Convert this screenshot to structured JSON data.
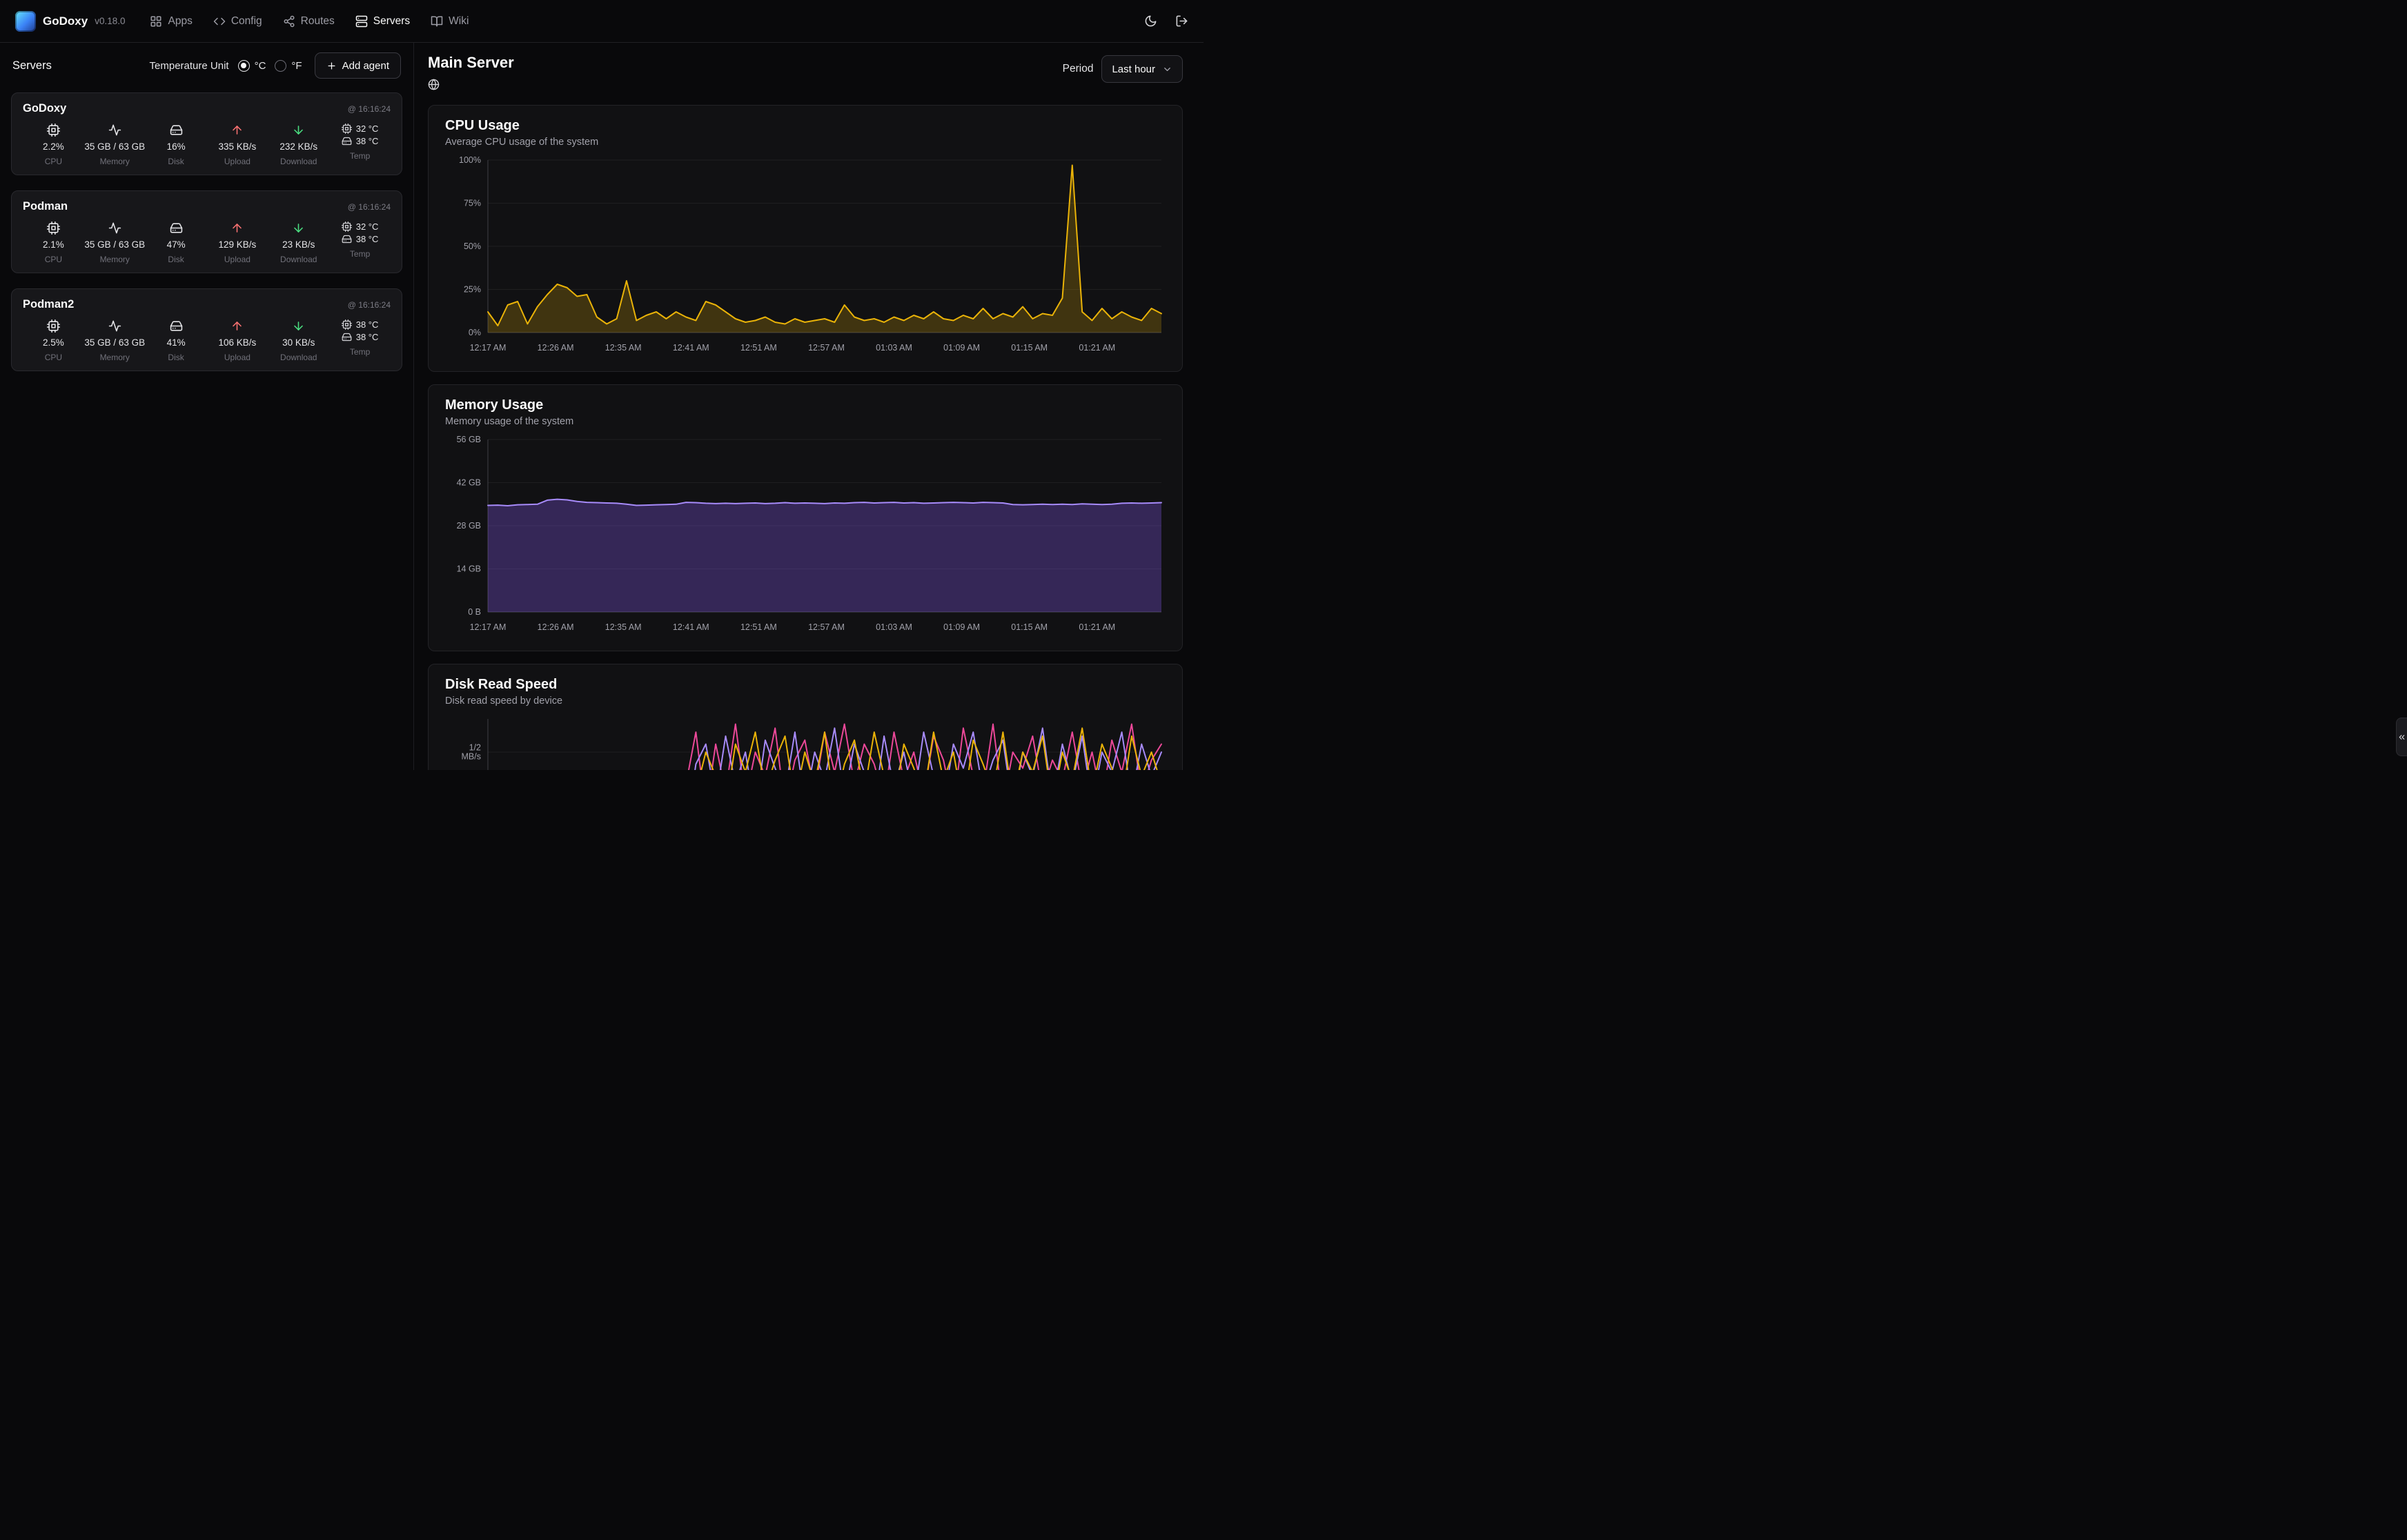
{
  "navbar": {
    "brand": "GoDoxy",
    "version": "v0.18.0",
    "items": [
      {
        "label": "Apps"
      },
      {
        "label": "Config"
      },
      {
        "label": "Routes"
      },
      {
        "label": "Servers"
      },
      {
        "label": "Wiki"
      }
    ]
  },
  "sidebar": {
    "title": "Servers",
    "temperature_unit_label": "Temperature Unit",
    "unit_celsius": "°C",
    "unit_fahrenheit": "°F",
    "add_agent_label": "Add agent",
    "labels": {
      "cpu": "CPU",
      "memory": "Memory",
      "disk": "Disk",
      "upload": "Upload",
      "download": "Download",
      "temp": "Temp"
    },
    "servers": [
      {
        "name": "GoDoxy",
        "timestamp": "@ 16:16:24",
        "cpu": "2.2%",
        "memory": "35 GB / 63 GB",
        "disk": "16%",
        "upload": "335 KB/s",
        "download": "232 KB/s",
        "temp_cpu": "32 °C",
        "temp_disk": "38 °C"
      },
      {
        "name": "Podman",
        "timestamp": "@ 16:16:24",
        "cpu": "2.1%",
        "memory": "35 GB / 63 GB",
        "disk": "47%",
        "upload": "129 KB/s",
        "download": "23 KB/s",
        "temp_cpu": "32 °C",
        "temp_disk": "38 °C"
      },
      {
        "name": "Podman2",
        "timestamp": "@ 16:16:24",
        "cpu": "2.5%",
        "memory": "35 GB / 63 GB",
        "disk": "41%",
        "upload": "106 KB/s",
        "download": "30 KB/s",
        "temp_cpu": "38 °C",
        "temp_disk": "38 °C"
      }
    ]
  },
  "main": {
    "title": "Main Server",
    "period_label": "Period",
    "period_value": "Last hour"
  },
  "chart_data": [
    {
      "type": "area",
      "title": "CPU Usage",
      "subtitle": "Average CPU usage of the system",
      "ylabel": "",
      "xlabel": "",
      "ylim": [
        0,
        100
      ],
      "y_ticks": [
        {
          "v": 0,
          "label": "0%"
        },
        {
          "v": 25,
          "label": "25%"
        },
        {
          "v": 50,
          "label": "50%"
        },
        {
          "v": 75,
          "label": "75%"
        },
        {
          "v": 100,
          "label": "100%"
        }
      ],
      "x_ticks": [
        "12:17 AM",
        "12:26 AM",
        "12:35 AM",
        "12:41 AM",
        "12:51 AM",
        "12:57 AM",
        "01:03 AM",
        "01:09 AM",
        "01:15 AM",
        "01:21 AM"
      ],
      "series": [
        {
          "name": "CPU %",
          "color": "#eab308",
          "fill": "rgba(234,179,8,0.22)",
          "values": [
            12,
            4,
            16,
            18,
            5,
            15,
            22,
            28,
            26,
            21,
            22,
            9,
            5,
            8,
            30,
            7,
            10,
            12,
            8,
            12,
            9,
            7,
            18,
            16,
            12,
            8,
            6,
            7,
            9,
            6,
            5,
            8,
            6,
            7,
            8,
            6,
            16,
            9,
            7,
            8,
            6,
            9,
            7,
            10,
            8,
            12,
            8,
            7,
            10,
            8,
            14,
            8,
            11,
            9,
            15,
            8,
            11,
            10,
            20,
            97,
            12,
            7,
            14,
            8,
            12,
            9,
            7,
            14,
            11
          ]
        }
      ]
    },
    {
      "type": "area",
      "title": "Memory Usage",
      "subtitle": "Memory usage of the system",
      "ylabel": "",
      "xlabel": "",
      "ylim": [
        0,
        56
      ],
      "y_ticks": [
        {
          "v": 0,
          "label": "0 B"
        },
        {
          "v": 14,
          "label": "14 GB"
        },
        {
          "v": 28,
          "label": "28 GB"
        },
        {
          "v": 42,
          "label": "42 GB"
        },
        {
          "v": 56,
          "label": "56 GB"
        }
      ],
      "x_ticks": [
        "12:17 AM",
        "12:26 AM",
        "12:35 AM",
        "12:41 AM",
        "12:51 AM",
        "12:57 AM",
        "01:03 AM",
        "01:09 AM",
        "01:15 AM",
        "01:21 AM"
      ],
      "series": [
        {
          "name": "Memory GB",
          "color": "#a78bfa",
          "fill": "rgba(139,92,246,0.30)",
          "values": [
            34.6,
            34.7,
            34.5,
            34.8,
            34.9,
            35.0,
            36.3,
            36.6,
            36.4,
            35.9,
            35.6,
            35.5,
            35.4,
            35.3,
            35.0,
            34.6,
            34.7,
            34.8,
            34.9,
            35.0,
            35.6,
            35.5,
            35.3,
            35.2,
            35.3,
            35.2,
            35.3,
            35.4,
            35.2,
            35.3,
            35.5,
            35.3,
            35.4,
            35.3,
            35.2,
            35.4,
            35.3,
            35.5,
            35.6,
            35.4,
            35.5,
            35.6,
            35.4,
            35.5,
            35.3,
            35.4,
            35.5,
            35.6,
            35.5,
            35.4,
            35.6,
            35.5,
            35.4,
            34.9,
            34.8,
            34.9,
            35.0,
            34.9,
            35.0,
            34.9,
            35.1,
            35.0,
            34.9,
            35.0,
            35.3,
            35.4,
            35.3,
            35.4,
            35.5
          ]
        }
      ]
    },
    {
      "type": "line",
      "title": "Disk Read Speed",
      "subtitle": "Disk read speed by device",
      "ylabel": "",
      "xlabel": "",
      "ylim": [
        0,
        0.583
      ],
      "y_ticks": [
        {
          "v": 0.5,
          "label": [
            "1/2",
            "MB/s"
          ]
        }
      ],
      "x_ticks": [],
      "series": [
        {
          "name": "",
          "color": "#ec4899",
          "values": [
            0,
            0,
            0,
            0,
            0,
            0,
            0,
            0,
            0,
            0,
            0,
            0,
            0,
            0,
            0,
            0,
            0,
            0,
            0,
            0.1,
            0.42,
            0.55,
            0.35,
            0.52,
            0.4,
            0.57,
            0.38,
            0.5,
            0.44,
            0.56,
            0.36,
            0.48,
            0.53,
            0.4,
            0.55,
            0.45,
            0.57,
            0.42,
            0.52,
            0.47,
            0.38,
            0.55,
            0.43,
            0.5,
            0.39,
            0.54,
            0.48,
            0.36,
            0.56,
            0.44,
            0.4,
            0.57,
            0.37,
            0.5,
            0.46,
            0.54,
            0.4,
            0.48,
            0.43,
            0.55,
            0.41,
            0.5,
            0.38,
            0.53,
            0.45,
            0.57,
            0.4,
            0.48,
            0.52
          ]
        },
        {
          "name": "",
          "color": "#a78bfa",
          "values": [
            0,
            0,
            0,
            0,
            0,
            0,
            0,
            0,
            0,
            0,
            0,
            0,
            0,
            0,
            0,
            0,
            0,
            0,
            0,
            0,
            0.3,
            0.47,
            0.52,
            0.38,
            0.54,
            0.42,
            0.5,
            0.35,
            0.53,
            0.46,
            0.4,
            0.55,
            0.37,
            0.5,
            0.43,
            0.56,
            0.39,
            0.52,
            0.45,
            0.36,
            0.54,
            0.41,
            0.5,
            0.38,
            0.55,
            0.44,
            0.37,
            0.52,
            0.46,
            0.55,
            0.4,
            0.48,
            0.53,
            0.36,
            0.5,
            0.44,
            0.56,
            0.38,
            0.52,
            0.42,
            0.54,
            0.37,
            0.5,
            0.45,
            0.55,
            0.39,
            0.52,
            0.44,
            0.5
          ]
        },
        {
          "name": "",
          "color": "#eab308",
          "values": [
            0,
            0,
            0,
            0,
            0,
            0,
            0,
            0,
            0,
            0,
            0,
            0,
            0,
            0,
            0,
            0,
            0,
            0,
            0,
            0,
            0.2,
            0.4,
            0.5,
            0.44,
            0.36,
            0.52,
            0.45,
            0.55,
            0.4,
            0.48,
            0.54,
            0.38,
            0.5,
            0.42,
            0.55,
            0.36,
            0.47,
            0.53,
            0.4,
            0.55,
            0.44,
            0.37,
            0.52,
            0.46,
            0.39,
            0.55,
            0.43,
            0.5,
            0.36,
            0.53,
            0.47,
            0.4,
            0.55,
            0.38,
            0.5,
            0.45,
            0.54,
            0.37,
            0.5,
            0.43,
            0.56,
            0.4,
            0.52,
            0.46,
            0.38,
            0.54,
            0.44,
            0.5,
            0.42
          ]
        }
      ]
    }
  ]
}
